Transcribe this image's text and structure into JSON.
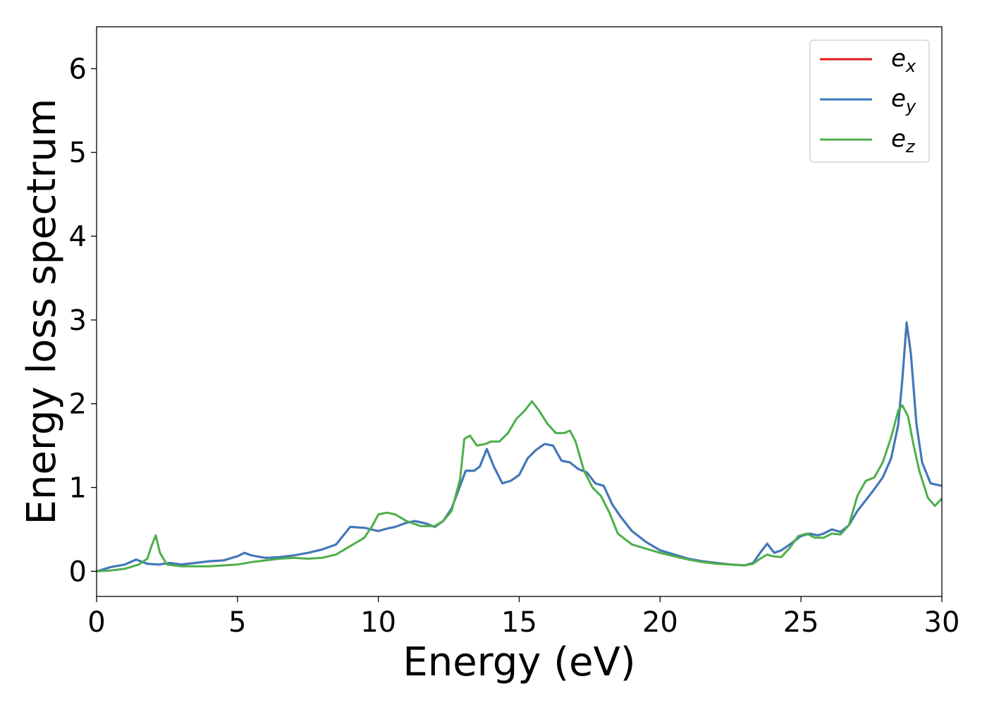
{
  "chart_data": {
    "type": "line",
    "title": "",
    "xlabel": "Energy (eV)",
    "ylabel": "Energy loss spectrum",
    "xlim": [
      0,
      30
    ],
    "ylim": [
      -0.3,
      6.5
    ],
    "xticks": [
      0,
      5,
      10,
      15,
      20,
      25,
      30
    ],
    "yticks": [
      0,
      1,
      2,
      3,
      4,
      5,
      6
    ],
    "grid": false,
    "legend_position": "top-right",
    "series": [
      {
        "name": "e",
        "subscript": "x",
        "color": "#e41a1c",
        "x": [
          0,
          0.5,
          1.0,
          1.4,
          1.8,
          2.2,
          2.6,
          3.0,
          3.5,
          4.0,
          4.5,
          5.0,
          5.25,
          5.5,
          6.0,
          6.5,
          7.0,
          7.5,
          8.0,
          8.5,
          9.0,
          9.5,
          10.0,
          10.3,
          10.6,
          11.0,
          11.3,
          11.7,
          12.0,
          12.3,
          12.6,
          12.9,
          13.1,
          13.4,
          13.6,
          13.85,
          14.1,
          14.4,
          14.7,
          15.0,
          15.3,
          15.6,
          15.9,
          16.2,
          16.5,
          16.8,
          17.1,
          17.4,
          17.7,
          18.0,
          18.3,
          18.6,
          19.0,
          19.5,
          20.0,
          20.5,
          21.0,
          21.5,
          22.0,
          22.5,
          23.0,
          23.3,
          23.55,
          23.8,
          24.05,
          24.3,
          24.6,
          25.0,
          25.3,
          25.6,
          25.8,
          26.1,
          26.4,
          26.7,
          27.0,
          27.3,
          27.6,
          27.9,
          28.2,
          28.45,
          28.6,
          28.75,
          28.9,
          29.1,
          29.3,
          29.6,
          30.0
        ],
        "y": [
          0.0,
          0.05,
          0.08,
          0.14,
          0.09,
          0.08,
          0.1,
          0.08,
          0.1,
          0.12,
          0.13,
          0.18,
          0.22,
          0.19,
          0.16,
          0.17,
          0.19,
          0.22,
          0.26,
          0.32,
          0.53,
          0.52,
          0.48,
          0.51,
          0.53,
          0.58,
          0.6,
          0.57,
          0.53,
          0.6,
          0.75,
          1.02,
          1.2,
          1.2,
          1.25,
          1.46,
          1.25,
          1.05,
          1.08,
          1.15,
          1.35,
          1.45,
          1.52,
          1.5,
          1.32,
          1.3,
          1.22,
          1.18,
          1.05,
          1.02,
          0.8,
          0.65,
          0.48,
          0.35,
          0.25,
          0.2,
          0.15,
          0.12,
          0.1,
          0.08,
          0.07,
          0.1,
          0.22,
          0.33,
          0.22,
          0.25,
          0.32,
          0.42,
          0.45,
          0.43,
          0.45,
          0.5,
          0.47,
          0.55,
          0.72,
          0.85,
          0.98,
          1.12,
          1.35,
          1.75,
          2.3,
          2.97,
          2.6,
          1.75,
          1.3,
          1.05,
          1.02
        ]
      },
      {
        "name": "e",
        "subscript": "y",
        "color": "#3a7bbf",
        "x": [
          0,
          0.5,
          1.0,
          1.4,
          1.8,
          2.2,
          2.6,
          3.0,
          3.5,
          4.0,
          4.5,
          5.0,
          5.25,
          5.5,
          6.0,
          6.5,
          7.0,
          7.5,
          8.0,
          8.5,
          9.0,
          9.5,
          10.0,
          10.3,
          10.6,
          11.0,
          11.3,
          11.7,
          12.0,
          12.3,
          12.6,
          12.9,
          13.1,
          13.4,
          13.6,
          13.85,
          14.1,
          14.4,
          14.7,
          15.0,
          15.3,
          15.6,
          15.9,
          16.2,
          16.5,
          16.8,
          17.1,
          17.4,
          17.7,
          18.0,
          18.3,
          18.6,
          19.0,
          19.5,
          20.0,
          20.5,
          21.0,
          21.5,
          22.0,
          22.5,
          23.0,
          23.3,
          23.55,
          23.8,
          24.05,
          24.3,
          24.6,
          25.0,
          25.3,
          25.6,
          25.8,
          26.1,
          26.4,
          26.7,
          27.0,
          27.3,
          27.6,
          27.9,
          28.2,
          28.45,
          28.6,
          28.75,
          28.9,
          29.1,
          29.3,
          29.6,
          30.0
        ],
        "y": [
          0.0,
          0.05,
          0.08,
          0.14,
          0.09,
          0.08,
          0.1,
          0.08,
          0.1,
          0.12,
          0.13,
          0.18,
          0.22,
          0.19,
          0.16,
          0.17,
          0.19,
          0.22,
          0.26,
          0.32,
          0.53,
          0.52,
          0.48,
          0.51,
          0.53,
          0.58,
          0.6,
          0.57,
          0.53,
          0.6,
          0.75,
          1.02,
          1.2,
          1.2,
          1.25,
          1.46,
          1.25,
          1.05,
          1.08,
          1.15,
          1.35,
          1.45,
          1.52,
          1.5,
          1.32,
          1.3,
          1.22,
          1.18,
          1.05,
          1.02,
          0.8,
          0.65,
          0.48,
          0.35,
          0.25,
          0.2,
          0.15,
          0.12,
          0.1,
          0.08,
          0.07,
          0.1,
          0.22,
          0.33,
          0.22,
          0.25,
          0.32,
          0.42,
          0.45,
          0.43,
          0.45,
          0.5,
          0.47,
          0.55,
          0.72,
          0.85,
          0.98,
          1.12,
          1.35,
          1.75,
          2.3,
          2.97,
          2.6,
          1.75,
          1.3,
          1.05,
          1.02
        ]
      },
      {
        "name": "e",
        "subscript": "z",
        "color": "#4daf4a",
        "x": [
          0,
          0.5,
          1.0,
          1.5,
          1.8,
          1.95,
          2.1,
          2.25,
          2.5,
          3.0,
          3.5,
          4.0,
          4.5,
          5.0,
          5.5,
          6.0,
          6.5,
          7.0,
          7.5,
          8.0,
          8.5,
          9.0,
          9.5,
          9.8,
          10.0,
          10.3,
          10.6,
          11.0,
          11.5,
          12.0,
          12.3,
          12.6,
          12.9,
          13.05,
          13.25,
          13.5,
          13.8,
          14.0,
          14.3,
          14.6,
          14.9,
          15.2,
          15.45,
          15.7,
          16.0,
          16.3,
          16.6,
          16.8,
          17.0,
          17.3,
          17.6,
          17.9,
          18.2,
          18.5,
          19.0,
          19.5,
          20.0,
          20.5,
          21.0,
          21.5,
          22.0,
          22.5,
          23.0,
          23.3,
          23.55,
          23.8,
          24.0,
          24.3,
          24.6,
          24.9,
          25.2,
          25.5,
          25.8,
          26.1,
          26.4,
          26.7,
          27.0,
          27.3,
          27.6,
          27.9,
          28.2,
          28.45,
          28.6,
          28.8,
          29.0,
          29.2,
          29.5,
          29.75,
          30.0
        ],
        "y": [
          0.0,
          0.01,
          0.03,
          0.08,
          0.15,
          0.3,
          0.43,
          0.22,
          0.08,
          0.06,
          0.06,
          0.06,
          0.07,
          0.08,
          0.11,
          0.13,
          0.15,
          0.16,
          0.15,
          0.16,
          0.2,
          0.3,
          0.4,
          0.55,
          0.68,
          0.7,
          0.68,
          0.6,
          0.54,
          0.54,
          0.6,
          0.72,
          1.1,
          1.58,
          1.62,
          1.5,
          1.52,
          1.55,
          1.55,
          1.65,
          1.82,
          1.92,
          2.03,
          1.92,
          1.76,
          1.65,
          1.65,
          1.68,
          1.55,
          1.2,
          1.0,
          0.9,
          0.7,
          0.45,
          0.32,
          0.27,
          0.22,
          0.18,
          0.14,
          0.11,
          0.09,
          0.08,
          0.07,
          0.09,
          0.15,
          0.2,
          0.18,
          0.17,
          0.28,
          0.42,
          0.45,
          0.4,
          0.4,
          0.45,
          0.44,
          0.55,
          0.9,
          1.08,
          1.12,
          1.3,
          1.6,
          1.92,
          1.98,
          1.85,
          1.5,
          1.2,
          0.88,
          0.78,
          0.87
        ]
      }
    ]
  }
}
